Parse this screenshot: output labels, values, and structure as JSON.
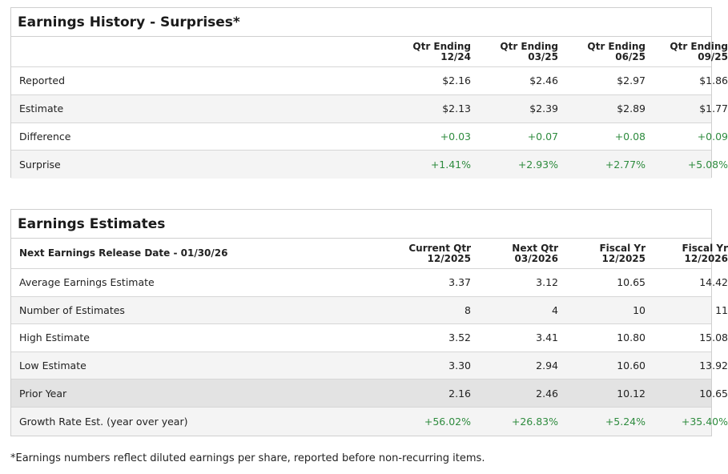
{
  "surprises": {
    "title": "Earnings History - Surprises*",
    "columns": [
      {
        "line1": "Qtr Ending",
        "line2": "12/24"
      },
      {
        "line1": "Qtr Ending",
        "line2": "03/25"
      },
      {
        "line1": "Qtr Ending",
        "line2": "06/25"
      },
      {
        "line1": "Qtr Ending",
        "line2": "09/25"
      }
    ],
    "rows": [
      {
        "label": "Reported",
        "values": [
          "$2.16",
          "$2.46",
          "$2.97",
          "$1.86"
        ]
      },
      {
        "label": "Estimate",
        "values": [
          "$2.13",
          "$2.39",
          "$2.89",
          "$1.77"
        ]
      },
      {
        "label": "Difference",
        "values": [
          "+0.03",
          "+0.07",
          "+0.08",
          "+0.09"
        ]
      },
      {
        "label": "Surprise",
        "values": [
          "+1.41%",
          "+2.93%",
          "+2.77%",
          "+5.08%"
        ]
      }
    ]
  },
  "estimates": {
    "title": "Earnings Estimates",
    "subheader": "Next Earnings Release Date - 01/30/26",
    "columns": [
      {
        "line1": "Current Qtr",
        "line2": "12/2025"
      },
      {
        "line1": "Next Qtr",
        "line2": "03/2026"
      },
      {
        "line1": "Fiscal Yr",
        "line2": "12/2025"
      },
      {
        "line1": "Fiscal Yr",
        "line2": "12/2026"
      }
    ],
    "rows": [
      {
        "label": "Average Earnings Estimate",
        "values": [
          "3.37",
          "3.12",
          "10.65",
          "14.42"
        ]
      },
      {
        "label": "Number of Estimates",
        "values": [
          "8",
          "4",
          "10",
          "11"
        ]
      },
      {
        "label": "High Estimate",
        "values": [
          "3.52",
          "3.41",
          "10.80",
          "15.08"
        ]
      },
      {
        "label": "Low Estimate",
        "values": [
          "3.30",
          "2.94",
          "10.60",
          "13.92"
        ]
      },
      {
        "label": "Prior Year",
        "values": [
          "2.16",
          "2.46",
          "10.12",
          "10.65"
        ]
      },
      {
        "label": "Growth Rate Est. (year over year)",
        "values": [
          "+56.02%",
          "+26.83%",
          "+5.24%",
          "+35.40%"
        ]
      }
    ]
  },
  "footnote": "*Earnings numbers reflect diluted earnings per share, reported before non-recurring items.",
  "colors": {
    "positive": "#2e8b3e",
    "border": "#cfcfcf",
    "row_shade": "#f4f4f4",
    "row_shade_dark": "#e3e3e3"
  }
}
